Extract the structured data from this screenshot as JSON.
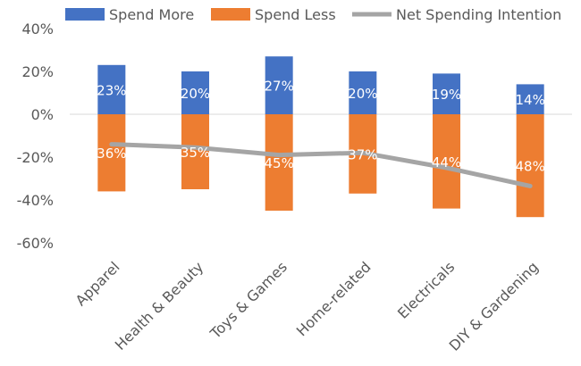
{
  "chart_data": {
    "type": "bar",
    "categories": [
      "Apparel",
      "Health & Beauty",
      "Toys & Games",
      "Home-related",
      "Electricals",
      "DIY & Gardening"
    ],
    "series": [
      {
        "name": "Spend More",
        "kind": "bar",
        "color": "#4472C4",
        "values": [
          23,
          20,
          27,
          20,
          19,
          14
        ],
        "labels": [
          "23%",
          "20%",
          "27%",
          "20%",
          "19%",
          "14%"
        ]
      },
      {
        "name": "Spend Less",
        "kind": "bar",
        "color": "#ED7D31",
        "values": [
          -36,
          -35,
          -45,
          -37,
          -44,
          -48
        ],
        "labels": [
          "36%",
          "35%",
          "45%",
          "37%",
          "44%",
          "48%"
        ]
      },
      {
        "name": "Net Spending Intention",
        "kind": "line",
        "color": "#A5A5A5",
        "values": [
          -14,
          -15.5,
          -19,
          -18,
          -25,
          -33.5
        ]
      }
    ],
    "y_ticks": [
      40,
      20,
      0,
      -20,
      -40,
      -60
    ],
    "y_tick_labels": [
      "40%",
      "20%",
      "0%",
      "-20%",
      "-40%",
      "-60%"
    ],
    "ylim": [
      -60,
      40
    ],
    "grid": false,
    "legend_position": "top",
    "title": "",
    "xlabel": "",
    "ylabel": ""
  }
}
